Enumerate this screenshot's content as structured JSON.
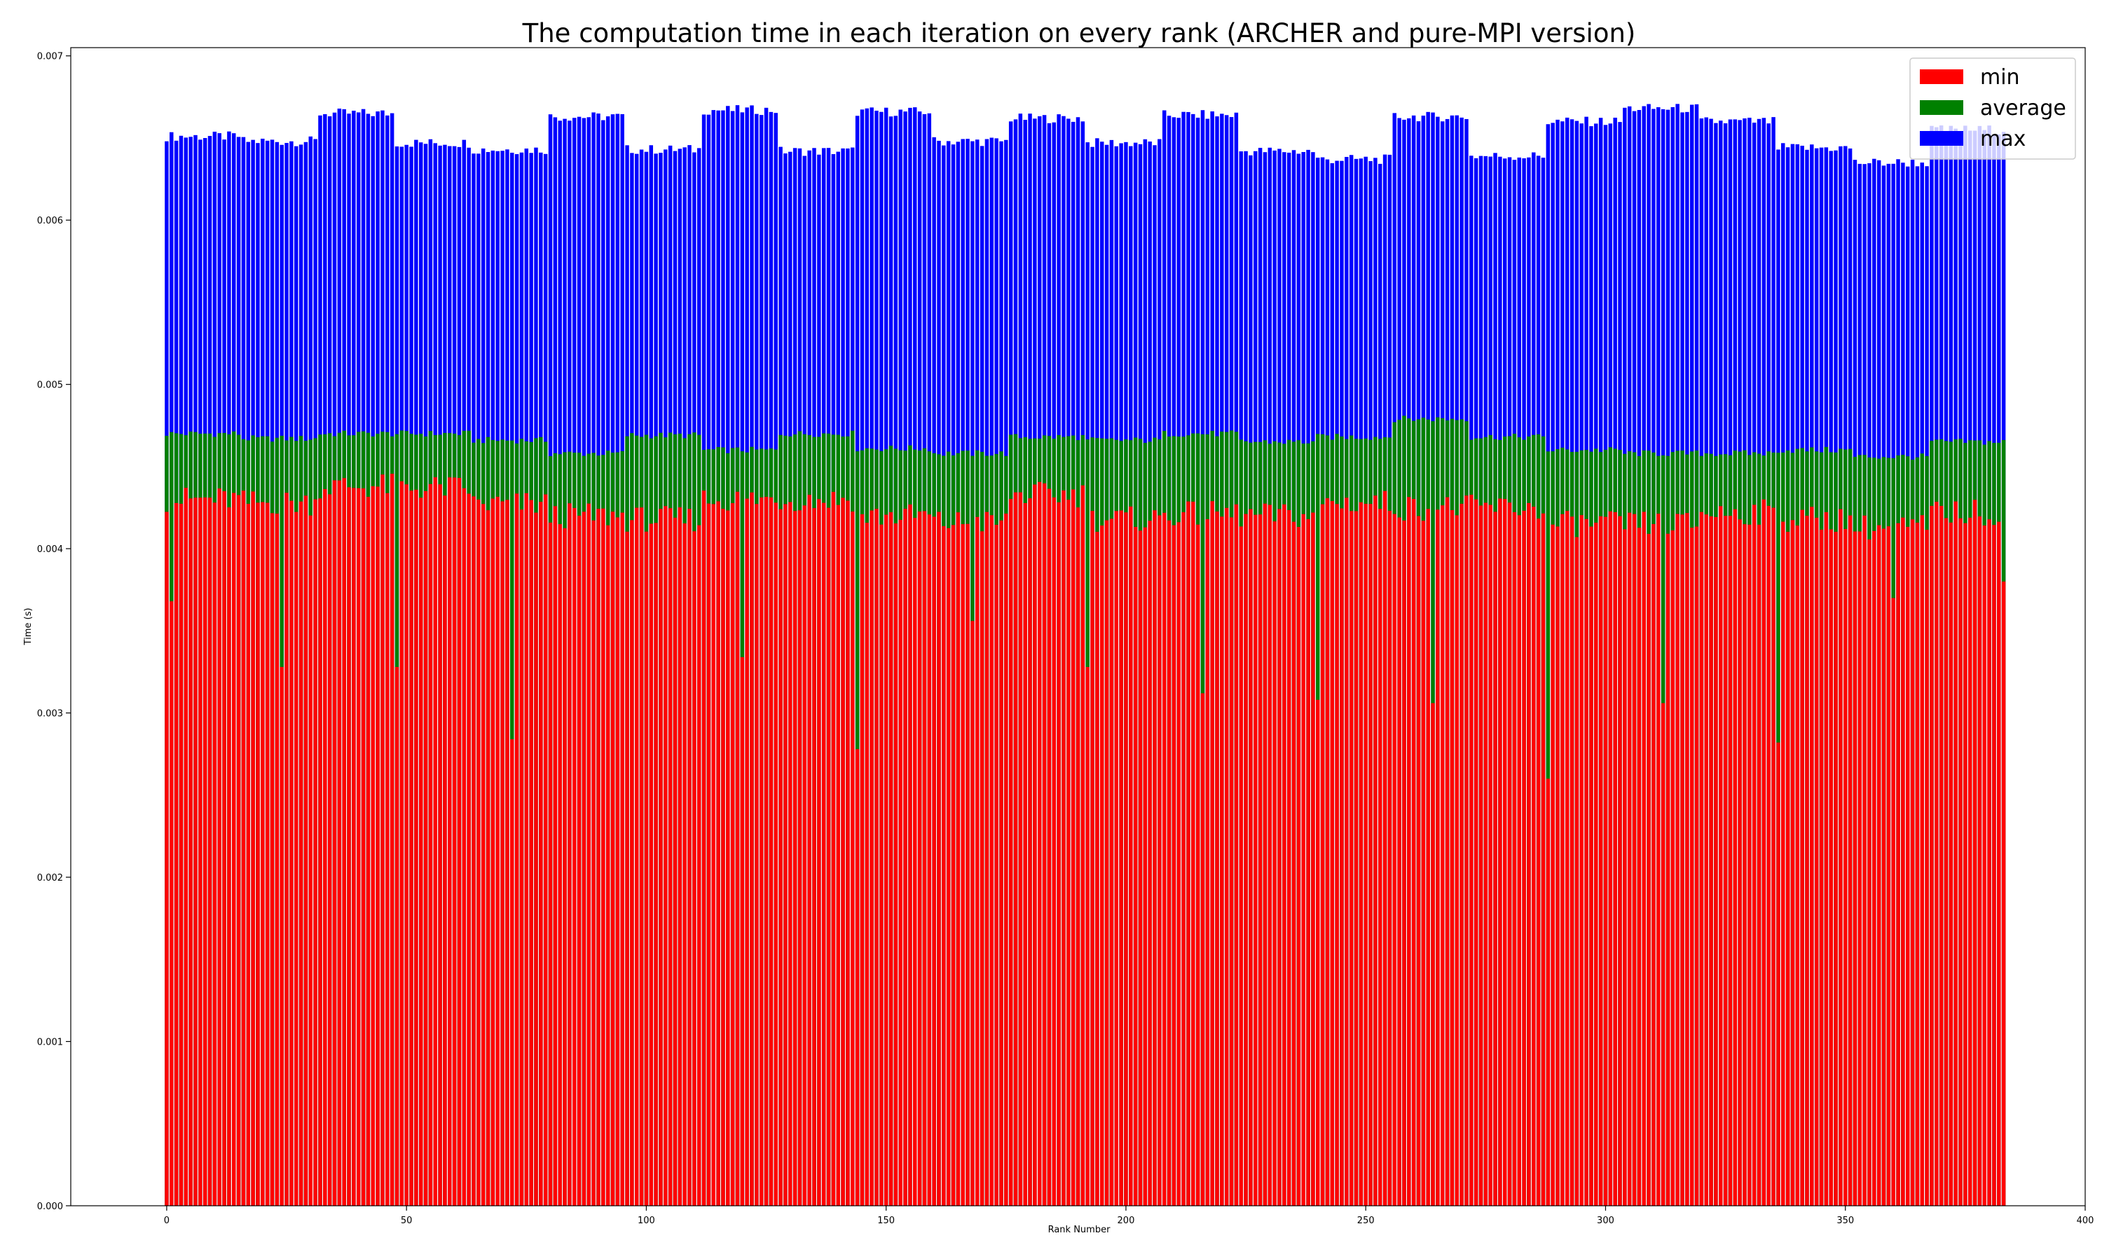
{
  "chart_data": {
    "type": "bar",
    "stacking": "overlaid",
    "title": "The computation time in each iteration on every rank (ARCHER and pure-MPI version)",
    "xlabel": "Rank Number",
    "ylabel": "Time (s)",
    "xlim": [
      -20,
      400
    ],
    "ylim": [
      0,
      0.00705
    ],
    "xticks": [
      0,
      50,
      100,
      150,
      200,
      250,
      300,
      350,
      400
    ],
    "yticks": [
      0.0,
      0.001,
      0.002,
      0.003,
      0.004,
      0.005,
      0.006,
      0.007
    ],
    "ytick_labels": [
      "0.000",
      "0.001",
      "0.002",
      "0.003",
      "0.004",
      "0.005",
      "0.006",
      "0.007"
    ],
    "grid": false,
    "legend": {
      "position": "top-right",
      "entries": [
        "min",
        "average",
        "max"
      ]
    },
    "rank_count": 384,
    "draw_order": [
      "max",
      "average",
      "min"
    ],
    "series": [
      {
        "name": "max",
        "color": "#0000ff",
        "group_means": [
          0.00651,
          0.00648,
          0.00665,
          0.00647,
          0.00643,
          0.00663,
          0.00643,
          0.00667,
          0.00642,
          0.00666,
          0.00648,
          0.00662,
          0.00647,
          0.00664,
          0.00642,
          0.00637,
          0.00663,
          0.00639,
          0.0066,
          0.00668,
          0.0066,
          0.00644,
          0.00635,
          0.00655
        ],
        "wiggle": 3e-05,
        "drops": []
      },
      {
        "name": "average",
        "color": "#008000",
        "group_means": [
          0.0047,
          0.00467,
          0.0047,
          0.0047,
          0.00466,
          0.00458,
          0.00469,
          0.0046,
          0.0047,
          0.00461,
          0.00458,
          0.00468,
          0.00466,
          0.0047,
          0.00465,
          0.00468,
          0.00479,
          0.00468,
          0.0046,
          0.00458,
          0.00458,
          0.0046,
          0.00456,
          0.00465
        ],
        "wiggle": 2e-05,
        "drops": []
      },
      {
        "name": "min",
        "color": "#ff0000",
        "group_means": [
          0.0043,
          0.00428,
          0.00438,
          0.00437,
          0.00427,
          0.0042,
          0.00418,
          0.0043,
          0.0043,
          0.0042,
          0.00416,
          0.00433,
          0.00418,
          0.00421,
          0.0042,
          0.00428,
          0.00425,
          0.00425,
          0.00415,
          0.00415,
          0.00422,
          0.00418,
          0.00413,
          0.00422
        ],
        "wiggle": 8e-05,
        "drops": [
          {
            "rank": 1,
            "value": 0.00368
          },
          {
            "rank": 24,
            "value": 0.00328
          },
          {
            "rank": 48,
            "value": 0.00328
          },
          {
            "rank": 72,
            "value": 0.00284
          },
          {
            "rank": 120,
            "value": 0.00334
          },
          {
            "rank": 144,
            "value": 0.00278
          },
          {
            "rank": 168,
            "value": 0.00356
          },
          {
            "rank": 192,
            "value": 0.00328
          },
          {
            "rank": 216,
            "value": 0.00312
          },
          {
            "rank": 240,
            "value": 0.00308
          },
          {
            "rank": 264,
            "value": 0.00306
          },
          {
            "rank": 288,
            "value": 0.0026
          },
          {
            "rank": 312,
            "value": 0.00306
          },
          {
            "rank": 336,
            "value": 0.00282
          },
          {
            "rank": 360,
            "value": 0.0037
          },
          {
            "rank": 383,
            "value": 0.0038
          }
        ]
      }
    ]
  }
}
